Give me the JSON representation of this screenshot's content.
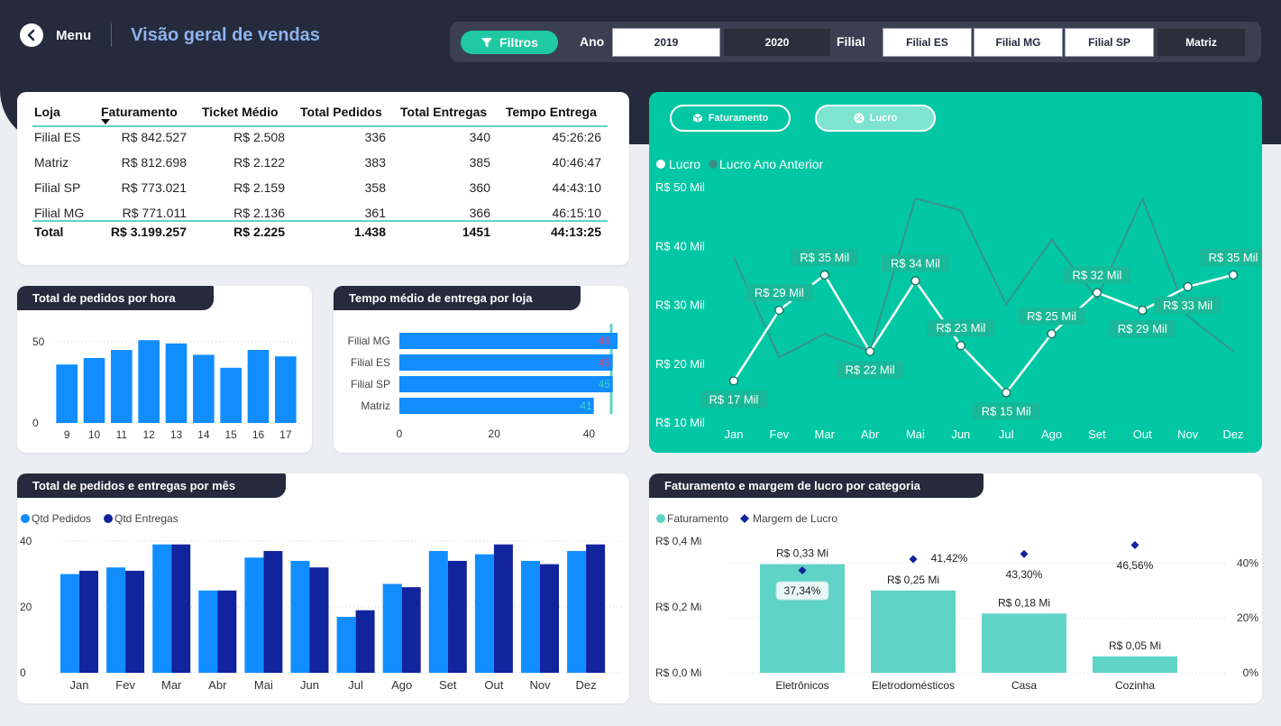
{
  "nav": {
    "menu_label": "Menu",
    "title": "Visão geral de vendas"
  },
  "filters": {
    "button_label": "Filtros",
    "ano_label": "Ano",
    "anos": [
      {
        "label": "2019",
        "selected": true
      },
      {
        "label": "2020",
        "selected": false
      }
    ],
    "filial_label": "Filial",
    "filiais": [
      {
        "label": "Filial ES",
        "selected": true
      },
      {
        "label": "Filial MG",
        "selected": true
      },
      {
        "label": "Filial SP",
        "selected": true
      },
      {
        "label": "Matriz",
        "selected": false
      }
    ]
  },
  "table": {
    "headers": [
      "Loja",
      "Faturamento",
      "Ticket Médio",
      "Total Pedidos",
      "Total Entregas",
      "Tempo Entrega"
    ],
    "rows": [
      [
        "Filial ES",
        "R$ 842.527",
        "R$ 2.508",
        "336",
        "340",
        "45:26:26"
      ],
      [
        "Matriz",
        "R$ 812.698",
        "R$ 2.122",
        "383",
        "385",
        "40:46:47"
      ],
      [
        "Filial SP",
        "R$ 773.021",
        "R$ 2.159",
        "358",
        "360",
        "44:43:10"
      ],
      [
        "Filial MG",
        "R$ 771.011",
        "R$ 2.136",
        "361",
        "366",
        "46:15:10"
      ]
    ],
    "total": [
      "Total",
      "R$ 3.199.257",
      "R$ 2.225",
      "1.438",
      "1451",
      "44:13:25"
    ],
    "sort_column": "Faturamento"
  },
  "pedidos_hora": {
    "title": "Total de pedidos por hora",
    "categories": [
      "9",
      "10",
      "11",
      "12",
      "13",
      "14",
      "15",
      "16",
      "17"
    ],
    "values": [
      36,
      40,
      45,
      51,
      49,
      42,
      34,
      45,
      41
    ],
    "y_ticks": [
      "0",
      "50"
    ],
    "ylim": [
      0,
      50
    ],
    "color": "#118dff"
  },
  "tempo_entrega": {
    "title": "Tempo médio de entrega por loja",
    "categories": [
      "Filial MG",
      "Filial ES",
      "Filial SP",
      "Matriz"
    ],
    "values": [
      46,
      45,
      45,
      41
    ],
    "x_ticks": [
      "0",
      "20",
      "40"
    ],
    "xlim": [
      0,
      46
    ],
    "color": "#118dff"
  },
  "lucro_chart": {
    "tabs": [
      "Faturamento",
      "Lucro"
    ],
    "legend": [
      "Lucro",
      "Lucro Ano Anterior"
    ],
    "categories": [
      "Jan",
      "Fev",
      "Mar",
      "Abr",
      "Mai",
      "Jun",
      "Jul",
      "Ago",
      "Set",
      "Out",
      "Nov",
      "Dez"
    ],
    "series": [
      {
        "name": "Lucro",
        "values": [
          17,
          29,
          35,
          22,
          34,
          23,
          15,
          25,
          32,
          29,
          33,
          35
        ]
      },
      {
        "name": "Lucro Ano Anterior",
        "values": [
          38,
          21,
          25,
          22,
          48,
          46,
          30,
          41,
          31,
          48,
          28,
          22
        ]
      }
    ],
    "labels": [
      "R$ 17 Mil",
      "R$ 29 Mil",
      "R$ 35 Mil",
      "R$ 22 Mil",
      "R$ 34 Mil",
      "R$ 23 Mil",
      "R$ 15 Mil",
      "R$ 25 Mil",
      "R$ 32 Mil",
      "R$ 29 Mil",
      "R$ 33 Mil",
      "R$ 35 Mil"
    ],
    "y_ticks": [
      "R$ 10 Mil",
      "R$ 20 Mil",
      "R$ 30 Mil",
      "R$ 40 Mil",
      "R$ 50 Mil"
    ],
    "ylim": [
      10,
      50
    ]
  },
  "pedidos_mes": {
    "title": "Total de pedidos e entregas por mês",
    "categories": [
      "Jan",
      "Fev",
      "Mar",
      "Abr",
      "Mai",
      "Jun",
      "Jul",
      "Ago",
      "Set",
      "Out",
      "Nov",
      "Dez"
    ],
    "series": [
      {
        "name": "Qtd Pedidos",
        "color": "#118dff",
        "values": [
          30,
          32,
          39,
          25,
          35,
          34,
          17,
          27,
          37,
          36,
          34,
          37
        ]
      },
      {
        "name": "Qtd Entregas",
        "color": "#12239e",
        "values": [
          31,
          31,
          39,
          25,
          37,
          32,
          19,
          26,
          34,
          39,
          33,
          39
        ]
      }
    ],
    "y_ticks": [
      "0",
      "20",
      "40"
    ],
    "ylim": [
      0,
      40
    ]
  },
  "categoria": {
    "title": "Faturamento e margem de lucro por categoria",
    "legend": [
      "Faturamento",
      "Margem de Lucro"
    ],
    "categories": [
      "Eletrônicos",
      "Eletrodomésticos",
      "Casa",
      "Cozinha"
    ],
    "faturamento": [
      0.33,
      0.25,
      0.18,
      0.05
    ],
    "faturamento_labels": [
      "R$ 0,33 Mi",
      "R$ 0,25 Mi",
      "R$ 0,18 Mi",
      "R$ 0,05 Mi"
    ],
    "margem": [
      37.34,
      41.42,
      43.3,
      46.56
    ],
    "margem_labels": [
      "37,34%",
      "41,42%",
      "43,30%",
      "46,56%"
    ],
    "y_ticks": [
      "R$ 0,0 Mi",
      "R$ 0,2 Mi",
      "R$ 0,4 Mi"
    ],
    "y2_ticks": [
      "0%",
      "20%",
      "40%"
    ],
    "ylim": [
      0,
      0.4
    ],
    "y2lim": [
      0,
      48
    ],
    "bar_color": "#5fd3c6",
    "marker_color": "#12239e"
  }
}
